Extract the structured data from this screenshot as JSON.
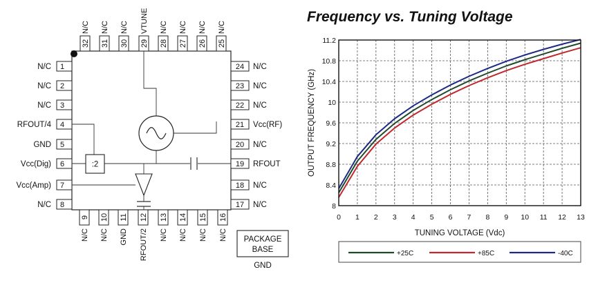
{
  "diagram": {
    "top_pins": [
      {
        "num": "32",
        "label": "N/C"
      },
      {
        "num": "31",
        "label": "N/C"
      },
      {
        "num": "30",
        "label": "N/C"
      },
      {
        "num": "29",
        "label": "VTUNE"
      },
      {
        "num": "28",
        "label": "N/C"
      },
      {
        "num": "27",
        "label": "N/C"
      },
      {
        "num": "26",
        "label": "N/C"
      },
      {
        "num": "25",
        "label": "N/C"
      }
    ],
    "left_pins": [
      {
        "num": "1",
        "label": "N/C"
      },
      {
        "num": "2",
        "label": "N/C"
      },
      {
        "num": "3",
        "label": "N/C"
      },
      {
        "num": "4",
        "label": "RFOUT/4"
      },
      {
        "num": "5",
        "label": "GND"
      },
      {
        "num": "6",
        "label": "Vcc(Dig)"
      },
      {
        "num": "7",
        "label": "Vcc(Amp)"
      },
      {
        "num": "8",
        "label": "N/C"
      }
    ],
    "right_pins": [
      {
        "num": "24",
        "label": "N/C"
      },
      {
        "num": "23",
        "label": "N/C"
      },
      {
        "num": "22",
        "label": "N/C"
      },
      {
        "num": "21",
        "label": "Vcc(RF)"
      },
      {
        "num": "20",
        "label": "N/C"
      },
      {
        "num": "19",
        "label": "RFOUT"
      },
      {
        "num": "18",
        "label": "N/C"
      },
      {
        "num": "17",
        "label": "N/C"
      }
    ],
    "bottom_pins": [
      {
        "num": "9",
        "label": "N/C"
      },
      {
        "num": "10",
        "label": "N/C"
      },
      {
        "num": "11",
        "label": "GND"
      },
      {
        "num": "12",
        "label": "RFOUT/2"
      },
      {
        "num": "13",
        "label": "N/C"
      },
      {
        "num": "14",
        "label": "N/C"
      },
      {
        "num": "15",
        "label": "N/C"
      },
      {
        "num": "16",
        "label": "N/C"
      }
    ],
    "divider_label": ":2",
    "package_base_line1": "PACKAGE",
    "package_base_line2": "BASE",
    "package_gnd": "GND"
  },
  "chart_data": {
    "type": "line",
    "title": "Frequency vs. Tuning Voltage",
    "xlabel": "TUNING VOLTAGE (Vdc)",
    "ylabel": "OUTPUT FREQUENCY (GHz)",
    "xlim": [
      0,
      13
    ],
    "ylim": [
      8,
      11.2
    ],
    "x_ticks": [
      "0",
      "1",
      "2",
      "3",
      "4",
      "5",
      "6",
      "7",
      "8",
      "9",
      "10",
      "11",
      "12",
      "13"
    ],
    "y_ticks": [
      "8",
      "8.4",
      "8.8",
      "9.2",
      "9.6",
      "10",
      "10.4",
      "10.8",
      "11.2"
    ],
    "grid": "dashed",
    "legend_position": "bottom",
    "x": [
      0,
      1,
      2,
      3,
      4,
      5,
      6,
      7,
      8,
      9,
      10,
      11,
      12,
      13
    ],
    "series": [
      {
        "name": "+25C",
        "color": "#1f4a2c",
        "values": [
          8.25,
          8.86,
          9.28,
          9.59,
          9.84,
          10.05,
          10.24,
          10.41,
          10.56,
          10.7,
          10.82,
          10.93,
          11.04,
          11.14
        ]
      },
      {
        "name": "+85C",
        "color": "#c0282d",
        "values": [
          8.16,
          8.76,
          9.19,
          9.5,
          9.75,
          9.96,
          10.15,
          10.32,
          10.47,
          10.61,
          10.73,
          10.84,
          10.95,
          11.05
        ]
      },
      {
        "name": "-40C",
        "color": "#1c2a86",
        "values": [
          8.33,
          8.95,
          9.37,
          9.68,
          9.93,
          10.14,
          10.33,
          10.5,
          10.65,
          10.79,
          10.91,
          11.02,
          11.12,
          11.21
        ]
      }
    ]
  }
}
